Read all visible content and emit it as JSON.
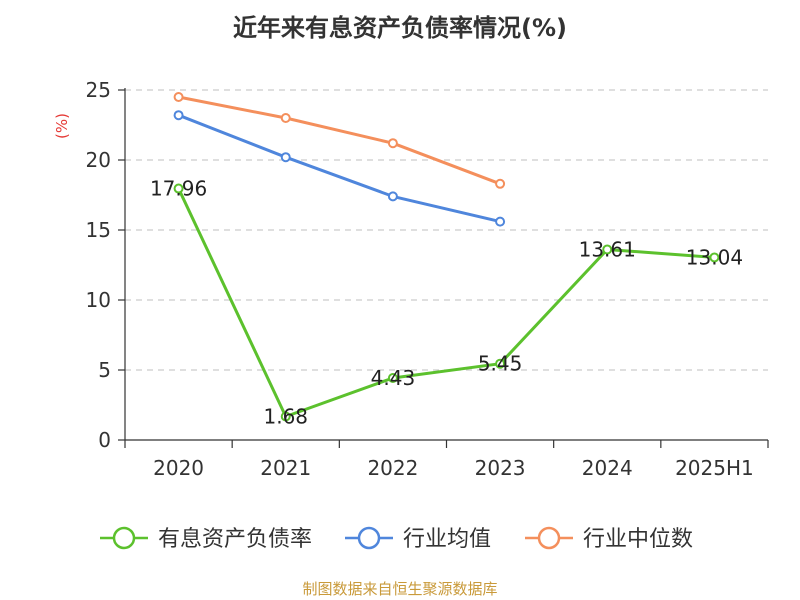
{
  "title": "近年来有息资产负债率情况(%)",
  "source": "制图数据来自恒生聚源数据库",
  "chart_data": {
    "type": "line",
    "title": "近年来有息资产负债率情况(%)",
    "xlabel": "",
    "ylabel": "(%)",
    "categories": [
      "2020",
      "2021",
      "2022",
      "2023",
      "2024",
      "2025H1"
    ],
    "ylim": [
      0,
      25
    ],
    "yticks": [
      0,
      5,
      10,
      15,
      20,
      25
    ],
    "grid": true,
    "legend_position": "bottom",
    "series": [
      {
        "name": "有息资产负债率",
        "color": "#5cc12d",
        "values": [
          17.96,
          1.68,
          4.43,
          5.45,
          13.61,
          13.04
        ],
        "labels": true
      },
      {
        "name": "行业均值",
        "color": "#4f86dc",
        "values": [
          23.2,
          20.2,
          17.4,
          15.6,
          null,
          null
        ],
        "labels": false
      },
      {
        "name": "行业中位数",
        "color": "#f48f5c",
        "values": [
          24.5,
          23.0,
          21.2,
          18.3,
          null,
          null
        ],
        "labels": false
      }
    ]
  }
}
